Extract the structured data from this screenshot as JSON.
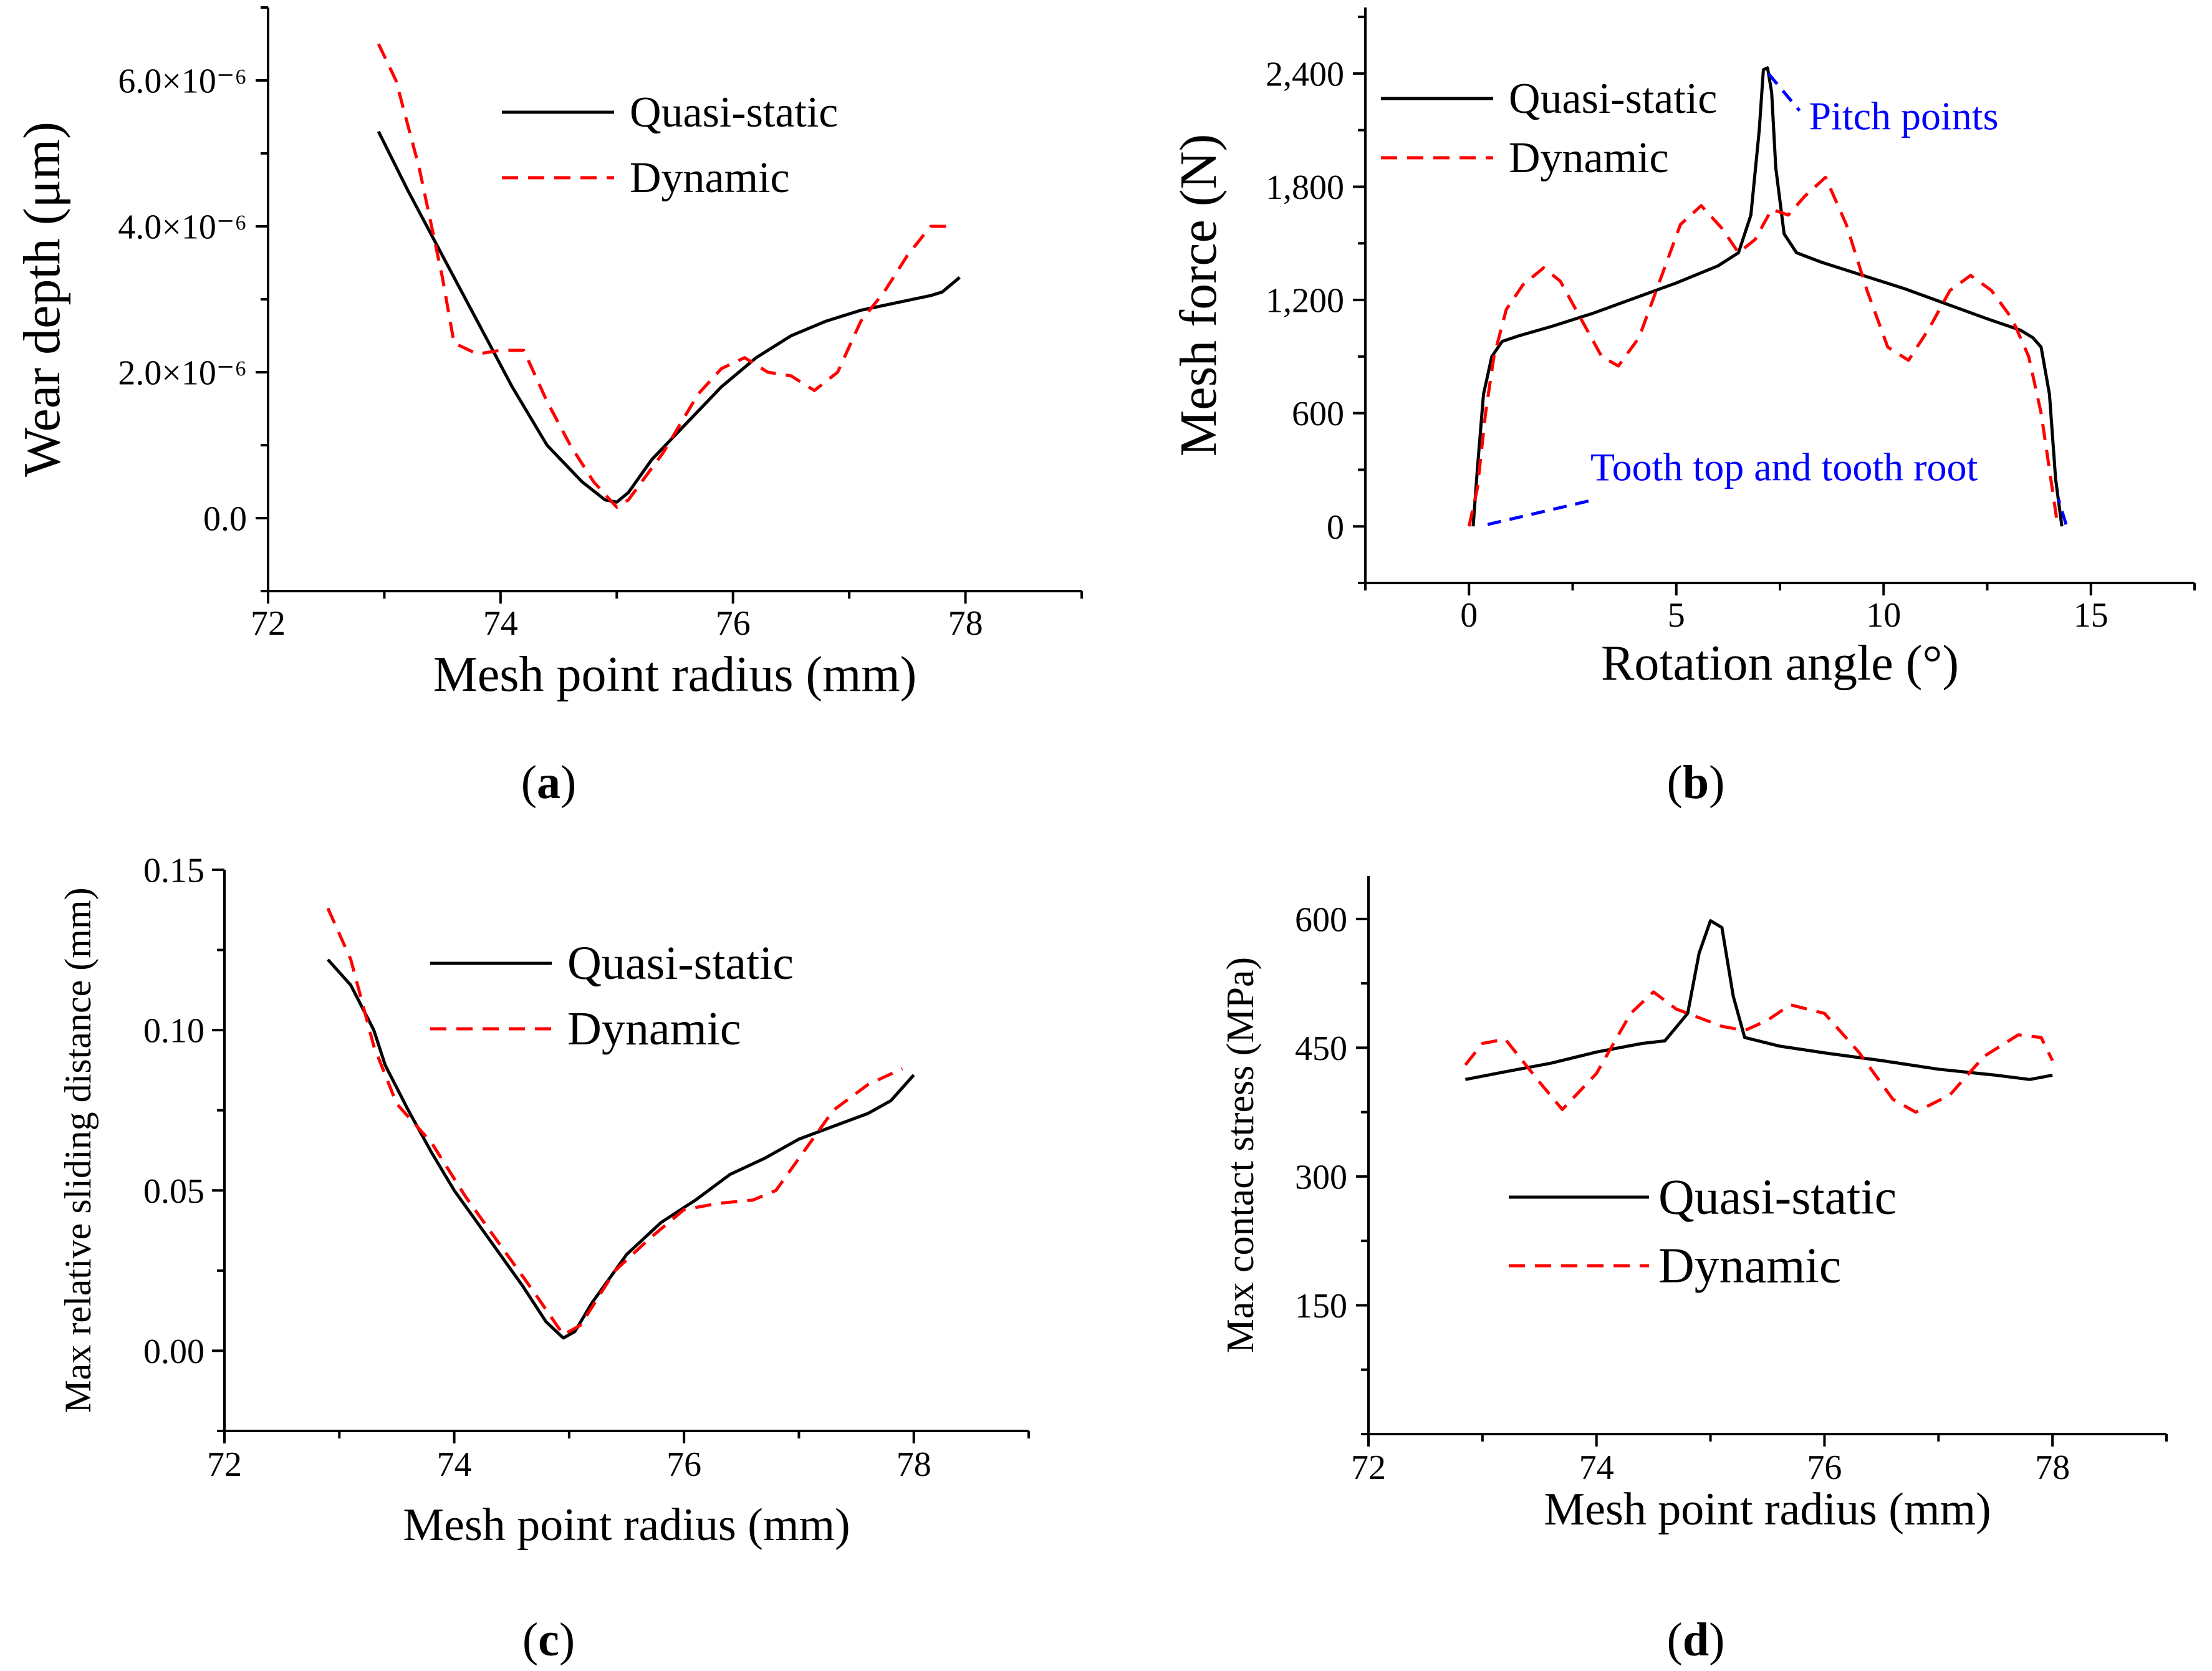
{
  "colors": {
    "quasi": "#000000",
    "dynamic": "#ff0000",
    "annotation": "#0000ff"
  },
  "legend": {
    "quasi": "Quasi-static",
    "dynamic": "Dynamic"
  },
  "captions": [
    "a",
    "b",
    "c",
    "d"
  ],
  "chart_data": [
    {
      "type": "line",
      "caption": "a",
      "title": "",
      "xlabel": "Mesh point radius (mm)",
      "ylabel": "Wear depth (μm)",
      "xlim": [
        72,
        79
      ],
      "ylim": [
        -1e-06,
        7e-06
      ],
      "xticks": [
        72,
        74,
        76,
        78
      ],
      "xtick_labels": [
        "72",
        "74",
        "76",
        "78"
      ],
      "yticks": [
        0,
        2e-06,
        4e-06,
        6e-06
      ],
      "ytick_labels": [
        "0.0",
        "2.0×10⁻⁶",
        "4.0×10⁻⁶",
        "6.0×10⁻⁶"
      ],
      "legend_position": "top-right",
      "series": [
        {
          "name": "Quasi-static",
          "style": "solid",
          "x": [
            72.95,
            73.2,
            73.5,
            73.8,
            74.1,
            74.4,
            74.7,
            74.9,
            75.0,
            75.1,
            75.3,
            75.6,
            75.9,
            76.2,
            76.5,
            76.8,
            77.1,
            77.4,
            77.7,
            77.8,
            77.95
          ],
          "y": [
            5.3e-06,
            4.5e-06,
            3.6e-06,
            2.7e-06,
            1.8e-06,
            1e-06,
            5e-07,
            2.5e-07,
            2.2e-07,
            3.5e-07,
            8e-07,
            1.3e-06,
            1.8e-06,
            2.2e-06,
            2.5e-06,
            2.7e-06,
            2.85e-06,
            2.95e-06,
            3.05e-06,
            3.1e-06,
            3.3e-06
          ]
        },
        {
          "name": "Dynamic",
          "style": "dashed",
          "x": [
            72.95,
            73.1,
            73.3,
            73.5,
            73.6,
            73.8,
            74.0,
            74.2,
            74.4,
            74.6,
            74.8,
            75.0,
            75.1,
            75.4,
            75.7,
            75.9,
            76.1,
            76.3,
            76.5,
            76.7,
            76.9,
            77.1,
            77.3,
            77.5,
            77.7,
            77.9
          ],
          "y": [
            6.5e-06,
            6e-06,
            4.8e-06,
            3.3e-06,
            2.4e-06,
            2.25e-06,
            2.3e-06,
            2.3e-06,
            1.6e-06,
            1e-06,
            5e-07,
            1.5e-07,
            2.5e-07,
            9e-07,
            1.7e-06,
            2.05e-06,
            2.2e-06,
            2e-06,
            1.95e-06,
            1.75e-06,
            2e-06,
            2.7e-06,
            3.1e-06,
            3.6e-06,
            4e-06,
            4e-06
          ]
        }
      ]
    },
    {
      "type": "line",
      "caption": "b",
      "title": "",
      "xlabel": "Rotation angle (°)",
      "ylabel": "Mesh force (N)",
      "xlim": [
        -2.5,
        17.5
      ],
      "ylim": [
        -300,
        2750
      ],
      "xticks": [
        0,
        5,
        10,
        15
      ],
      "xtick_labels": [
        "0",
        "5",
        "10",
        "15"
      ],
      "yticks": [
        0,
        600,
        1200,
        1800,
        2400
      ],
      "ytick_labels": [
        "0",
        "600",
        "1,200",
        "1,800",
        "2,400"
      ],
      "legend_position": "top-left",
      "annotations": [
        {
          "text": "Pitch points",
          "x": 7.1,
          "y": 2400,
          "label_x": 8.8,
          "label_y": 2170
        },
        {
          "text": "Tooth top and tooth root",
          "x1": 0.3,
          "y1": 10,
          "x2": 14.1,
          "y2": 10,
          "label_x": 7.6,
          "label_y": 310
        }
      ],
      "series": [
        {
          "name": "Quasi-static",
          "style": "solid",
          "x": [
            0.1,
            0.2,
            0.35,
            0.55,
            0.8,
            1.2,
            2.0,
            3.0,
            4.0,
            5.0,
            6.0,
            6.5,
            6.8,
            7.0,
            7.1,
            7.2,
            7.3,
            7.4,
            7.6,
            7.9,
            8.5,
            9.5,
            10.5,
            11.5,
            12.5,
            13.3,
            13.6,
            13.8,
            14.0,
            14.15,
            14.3
          ],
          "y": [
            0,
            300,
            700,
            900,
            980,
            1010,
            1060,
            1130,
            1210,
            1290,
            1380,
            1450,
            1650,
            2100,
            2420,
            2430,
            2300,
            1900,
            1550,
            1450,
            1400,
            1330,
            1260,
            1180,
            1100,
            1040,
            1000,
            950,
            700,
            250,
            0
          ]
        },
        {
          "name": "Dynamic",
          "style": "dashed",
          "x": [
            0.0,
            0.2,
            0.4,
            0.6,
            0.9,
            1.3,
            1.8,
            2.2,
            2.7,
            3.2,
            3.6,
            4.1,
            4.6,
            5.1,
            5.6,
            6.1,
            6.5,
            6.9,
            7.3,
            7.7,
            8.1,
            8.6,
            9.1,
            9.6,
            10.1,
            10.6,
            11.1,
            11.6,
            12.1,
            12.6,
            13.1,
            13.5,
            13.8,
            14.0,
            14.2
          ],
          "y": [
            0,
            200,
            600,
            900,
            1150,
            1280,
            1370,
            1300,
            1100,
            900,
            850,
            1000,
            1300,
            1600,
            1700,
            1580,
            1450,
            1520,
            1680,
            1650,
            1750,
            1850,
            1600,
            1250,
            950,
            880,
            1050,
            1250,
            1330,
            1250,
            1100,
            900,
            600,
            300,
            0
          ]
        }
      ]
    },
    {
      "type": "line",
      "caption": "c",
      "title": "",
      "xlabel": "Mesh point radius (mm)",
      "ylabel": "Max relative sliding distance (mm)",
      "xlim": [
        72,
        79
      ],
      "ylim": [
        -0.025,
        0.15
      ],
      "xticks": [
        72,
        74,
        76,
        78
      ],
      "xtick_labels": [
        "72",
        "74",
        "76",
        "78"
      ],
      "yticks": [
        0.0,
        0.05,
        0.1,
        0.15
      ],
      "ytick_labels": [
        "0.00",
        "0.05",
        "0.10",
        "0.15"
      ],
      "legend_position": "top-right",
      "series": [
        {
          "name": "Quasi-static",
          "style": "solid",
          "x": [
            72.9,
            73.1,
            73.3,
            73.4,
            73.6,
            73.8,
            74.0,
            74.3,
            74.6,
            74.8,
            74.95,
            75.05,
            75.2,
            75.5,
            75.8,
            76.1,
            76.4,
            76.7,
            77.0,
            77.3,
            77.6,
            77.8,
            78.0
          ],
          "y": [
            0.122,
            0.114,
            0.1,
            0.089,
            0.075,
            0.062,
            0.05,
            0.035,
            0.02,
            0.009,
            0.004,
            0.006,
            0.015,
            0.03,
            0.04,
            0.047,
            0.055,
            0.06,
            0.066,
            0.07,
            0.074,
            0.078,
            0.086
          ]
        },
        {
          "name": "Dynamic",
          "style": "dashed",
          "x": [
            72.9,
            73.1,
            73.3,
            73.5,
            73.8,
            74.1,
            74.4,
            74.7,
            74.95,
            75.1,
            75.4,
            75.7,
            76.0,
            76.3,
            76.6,
            76.8,
            77.0,
            77.3,
            77.6,
            77.9
          ],
          "y": [
            0.138,
            0.122,
            0.095,
            0.077,
            0.065,
            0.048,
            0.033,
            0.018,
            0.005,
            0.008,
            0.025,
            0.035,
            0.044,
            0.046,
            0.047,
            0.05,
            0.06,
            0.075,
            0.083,
            0.088
          ]
        }
      ]
    },
    {
      "type": "line",
      "caption": "d",
      "title": "",
      "xlabel": "Mesh point radius (mm)",
      "ylabel": "Max contact stress (MPa)",
      "xlim": [
        72,
        79
      ],
      "ylim": [
        0,
        650
      ],
      "xticks": [
        72,
        74,
        76,
        78
      ],
      "xtick_labels": [
        "72",
        "74",
        "76",
        "78"
      ],
      "yticks": [
        150,
        300,
        450,
        600
      ],
      "ytick_labels": [
        "150",
        "300",
        "450",
        "600"
      ],
      "legend_position": "bottom-center",
      "series": [
        {
          "name": "Quasi-static",
          "style": "solid",
          "x": [
            72.85,
            73.2,
            73.6,
            74.0,
            74.4,
            74.6,
            74.8,
            74.9,
            75.0,
            75.1,
            75.2,
            75.3,
            75.6,
            76.0,
            76.5,
            77.0,
            77.5,
            77.8,
            78.0
          ],
          "y": [
            413,
            422,
            432,
            445,
            455,
            458,
            490,
            560,
            598,
            590,
            510,
            462,
            452,
            444,
            435,
            425,
            418,
            413,
            418
          ]
        },
        {
          "name": "Dynamic",
          "style": "dashed",
          "x": [
            72.85,
            73.0,
            73.2,
            73.5,
            73.7,
            74.0,
            74.3,
            74.5,
            74.7,
            74.9,
            75.1,
            75.3,
            75.5,
            75.7,
            76.0,
            76.3,
            76.6,
            76.8,
            77.1,
            77.4,
            77.7,
            77.9,
            78.0
          ],
          "y": [
            430,
            455,
            460,
            410,
            378,
            420,
            490,
            515,
            495,
            485,
            475,
            470,
            482,
            500,
            490,
            445,
            390,
            375,
            395,
            440,
            465,
            462,
            435
          ]
        }
      ]
    }
  ]
}
